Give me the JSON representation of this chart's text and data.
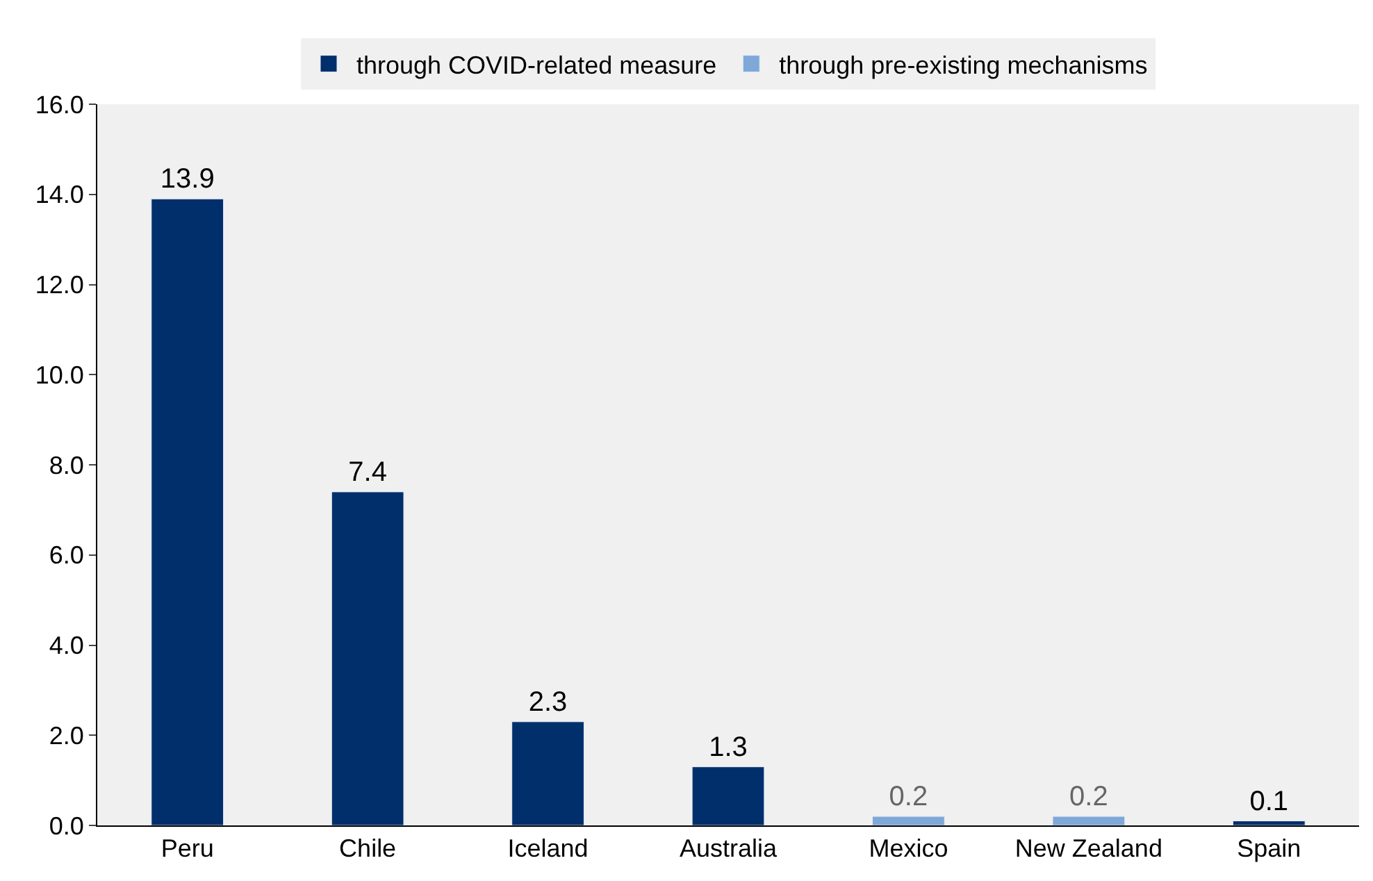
{
  "chart_data": {
    "type": "bar",
    "categories": [
      "Peru",
      "Chile",
      "Iceland",
      "Australia",
      "Mexico",
      "New Zealand",
      "Spain"
    ],
    "series": [
      {
        "name": "through COVID-related measure",
        "color": "#002f6c",
        "values": [
          13.9,
          7.4,
          2.3,
          1.3,
          null,
          null,
          0.1
        ]
      },
      {
        "name": "through pre-existing mechanisms",
        "color": "#7fa8d9",
        "values": [
          null,
          null,
          null,
          null,
          0.2,
          0.2,
          null
        ]
      }
    ],
    "ylim": [
      0,
      16
    ],
    "yticks": [
      {
        "value": 0,
        "label": "0.0"
      },
      {
        "value": 2,
        "label": "2.0"
      },
      {
        "value": 4,
        "label": "4.0"
      },
      {
        "value": 6,
        "label": "6.0"
      },
      {
        "value": 8,
        "label": "8.0"
      },
      {
        "value": 10,
        "label": "10.0"
      },
      {
        "value": 12,
        "label": "12.0"
      },
      {
        "value": 14,
        "label": "14.0"
      },
      {
        "value": 16,
        "label": "16.0"
      }
    ],
    "data_labels": true,
    "grid": false,
    "legend": "top"
  }
}
